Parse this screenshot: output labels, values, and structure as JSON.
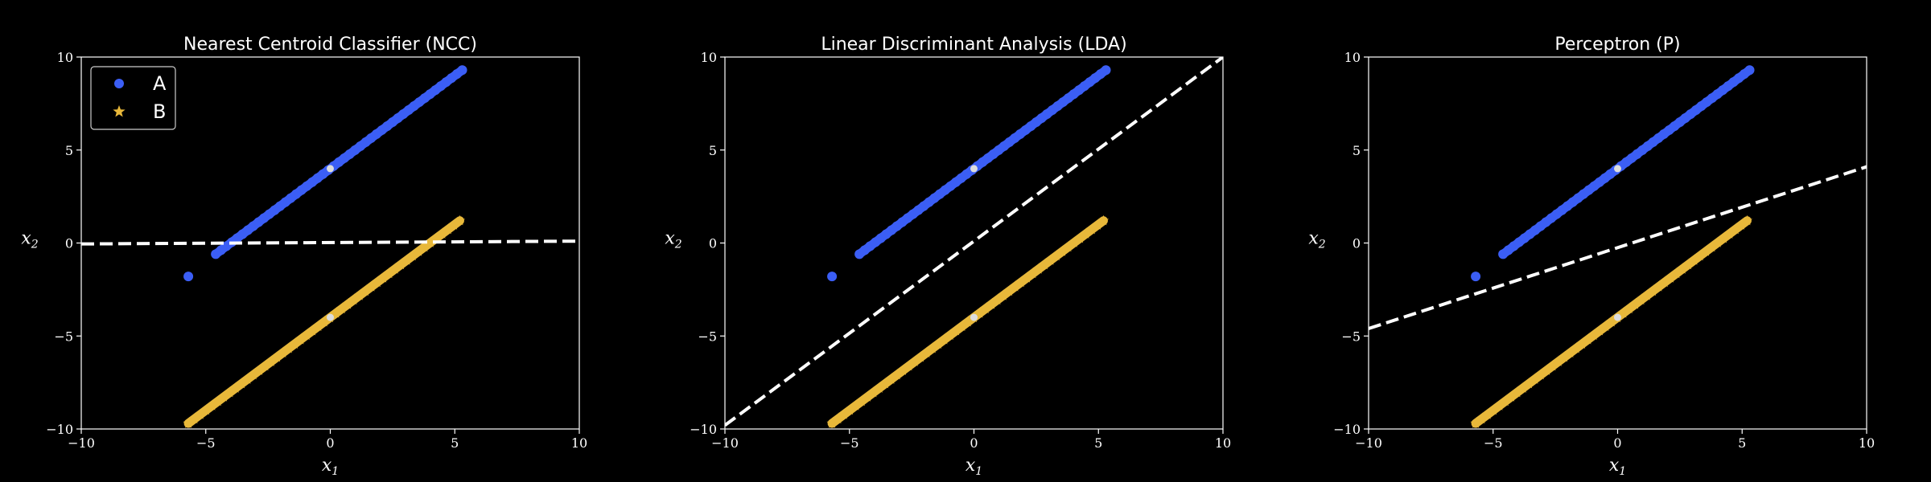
{
  "colors": {
    "background": "#000000",
    "class_a": "#3b5ef5",
    "class_b": "#e8b83a",
    "centroid": "#dddddd",
    "boundary": "#ffffff"
  },
  "legend": {
    "a": "A",
    "b": "B",
    "a_icon": "filled-circle-marker",
    "b_icon": "star-marker"
  },
  "chart_data": [
    {
      "type": "scatter",
      "title": "Nearest Centroid Classifier (NCC)",
      "xlabel": "x1",
      "ylabel": "x2",
      "xlim": [
        -10,
        10
      ],
      "ylim": [
        -10,
        10
      ],
      "xticks": [
        -10,
        -5,
        0,
        5,
        10
      ],
      "yticks": [
        -10,
        -5,
        0,
        5,
        10
      ],
      "grid": false,
      "legend_position": "top-left",
      "series": [
        {
          "name": "A",
          "marker": "circle",
          "line": {
            "x_start": -4.6,
            "x_end": 5.3,
            "intercept": 4,
            "slope": 1
          },
          "outliers": [
            [
              -5.7,
              -1.8
            ]
          ]
        },
        {
          "name": "B",
          "marker": "star",
          "line": {
            "x_start": -5.7,
            "x_end": 5.2,
            "intercept": -4,
            "slope": 1
          }
        }
      ],
      "centroids": [
        [
          0,
          4
        ],
        [
          0,
          -4
        ]
      ],
      "boundary": [
        [
          -10,
          -0.05
        ],
        [
          10,
          0.1
        ]
      ]
    },
    {
      "type": "scatter",
      "title": "Linear Discriminant Analysis (LDA)",
      "xlabel": "x1",
      "ylabel": "x2",
      "xlim": [
        -10,
        10
      ],
      "ylim": [
        -10,
        10
      ],
      "xticks": [
        -10,
        -5,
        0,
        5,
        10
      ],
      "yticks": [
        -10,
        -5,
        0,
        5,
        10
      ],
      "grid": false,
      "series": [
        {
          "name": "A",
          "marker": "circle",
          "line": {
            "x_start": -4.6,
            "x_end": 5.3,
            "intercept": 4,
            "slope": 1
          },
          "outliers": [
            [
              -5.7,
              -1.8
            ]
          ]
        },
        {
          "name": "B",
          "marker": "star",
          "line": {
            "x_start": -5.7,
            "x_end": 5.2,
            "intercept": -4,
            "slope": 1
          }
        }
      ],
      "centroids": [
        [
          0,
          4
        ],
        [
          0,
          -4
        ]
      ],
      "boundary": [
        [
          -10,
          -9.8
        ],
        [
          10,
          10
        ]
      ]
    },
    {
      "type": "scatter",
      "title": "Perceptron (P)",
      "xlabel": "x1",
      "ylabel": "x2",
      "xlim": [
        -10,
        10
      ],
      "ylim": [
        -10,
        10
      ],
      "xticks": [
        -10,
        -5,
        0,
        5,
        10
      ],
      "yticks": [
        -10,
        -5,
        0,
        5,
        10
      ],
      "grid": false,
      "series": [
        {
          "name": "A",
          "marker": "circle",
          "line": {
            "x_start": -4.6,
            "x_end": 5.3,
            "intercept": 4,
            "slope": 1
          },
          "outliers": [
            [
              -5.7,
              -1.8
            ]
          ]
        },
        {
          "name": "B",
          "marker": "star",
          "line": {
            "x_start": -5.7,
            "x_end": 5.2,
            "intercept": -4,
            "slope": 1
          }
        }
      ],
      "centroids": [
        [
          0,
          4
        ],
        [
          0,
          -4
        ]
      ],
      "boundary": [
        [
          -10,
          -4.6
        ],
        [
          10,
          4.1
        ]
      ]
    }
  ]
}
